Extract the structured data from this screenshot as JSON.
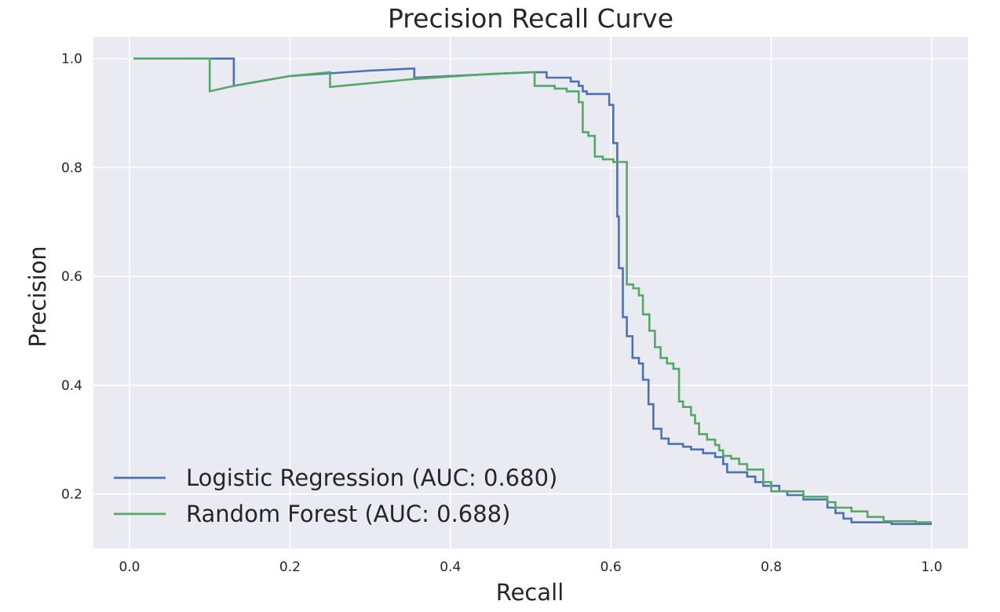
{
  "chart_data": {
    "type": "line",
    "title": "Precision Recall Curve",
    "xlabel": "Recall",
    "ylabel": "Precision",
    "xlim": [
      -0.045,
      1.045
    ],
    "ylim": [
      0.1,
      1.04
    ],
    "xticks": [
      0.0,
      0.2,
      0.4,
      0.6,
      0.8,
      1.0
    ],
    "xtick_labels": [
      "0.0",
      "0.2",
      "0.4",
      "0.6",
      "0.8",
      "1.0"
    ],
    "yticks": [
      0.2,
      0.4,
      0.6,
      0.8,
      1.0
    ],
    "ytick_labels": [
      "0.2",
      "0.4",
      "0.6",
      "0.8",
      "1.0"
    ],
    "grid": true,
    "background": "#eaeaf2",
    "legend_position": "lower-left",
    "series": [
      {
        "name": "Logistic Regression (AUC: 0.680)",
        "color": "#4c72b0",
        "step": "post",
        "points": [
          [
            0.005,
            1.0
          ],
          [
            0.13,
            1.0
          ],
          [
            0.13,
            0.95
          ],
          [
            0.2,
            0.968
          ],
          [
            0.3,
            0.978
          ],
          [
            0.355,
            0.982
          ],
          [
            0.355,
            0.965
          ],
          [
            0.5,
            0.975
          ],
          [
            0.52,
            0.975
          ],
          [
            0.52,
            0.965
          ],
          [
            0.55,
            0.965
          ],
          [
            0.55,
            0.958
          ],
          [
            0.56,
            0.958
          ],
          [
            0.56,
            0.95
          ],
          [
            0.565,
            0.95
          ],
          [
            0.565,
            0.94
          ],
          [
            0.57,
            0.94
          ],
          [
            0.57,
            0.935
          ],
          [
            0.598,
            0.935
          ],
          [
            0.598,
            0.915
          ],
          [
            0.603,
            0.915
          ],
          [
            0.603,
            0.845
          ],
          [
            0.608,
            0.845
          ],
          [
            0.608,
            0.71
          ],
          [
            0.61,
            0.71
          ],
          [
            0.61,
            0.615
          ],
          [
            0.615,
            0.615
          ],
          [
            0.615,
            0.525
          ],
          [
            0.62,
            0.525
          ],
          [
            0.62,
            0.49
          ],
          [
            0.627,
            0.49
          ],
          [
            0.627,
            0.45
          ],
          [
            0.635,
            0.45
          ],
          [
            0.635,
            0.44
          ],
          [
            0.64,
            0.44
          ],
          [
            0.64,
            0.41
          ],
          [
            0.647,
            0.41
          ],
          [
            0.647,
            0.365
          ],
          [
            0.653,
            0.365
          ],
          [
            0.653,
            0.32
          ],
          [
            0.663,
            0.32
          ],
          [
            0.663,
            0.302
          ],
          [
            0.672,
            0.302
          ],
          [
            0.672,
            0.292
          ],
          [
            0.69,
            0.292
          ],
          [
            0.69,
            0.287
          ],
          [
            0.7,
            0.287
          ],
          [
            0.7,
            0.282
          ],
          [
            0.715,
            0.282
          ],
          [
            0.715,
            0.275
          ],
          [
            0.73,
            0.275
          ],
          [
            0.73,
            0.268
          ],
          [
            0.74,
            0.268
          ],
          [
            0.74,
            0.255
          ],
          [
            0.745,
            0.255
          ],
          [
            0.745,
            0.24
          ],
          [
            0.77,
            0.24
          ],
          [
            0.77,
            0.232
          ],
          [
            0.78,
            0.232
          ],
          [
            0.78,
            0.222
          ],
          [
            0.79,
            0.222
          ],
          [
            0.79,
            0.215
          ],
          [
            0.81,
            0.215
          ],
          [
            0.81,
            0.205
          ],
          [
            0.82,
            0.205
          ],
          [
            0.82,
            0.198
          ],
          [
            0.84,
            0.198
          ],
          [
            0.84,
            0.19
          ],
          [
            0.87,
            0.19
          ],
          [
            0.87,
            0.175
          ],
          [
            0.88,
            0.175
          ],
          [
            0.88,
            0.165
          ],
          [
            0.89,
            0.165
          ],
          [
            0.89,
            0.155
          ],
          [
            0.9,
            0.155
          ],
          [
            0.9,
            0.148
          ],
          [
            0.95,
            0.148
          ],
          [
            0.95,
            0.145
          ],
          [
            1.0,
            0.145
          ]
        ]
      },
      {
        "name": "Random Forest (AUC: 0.688)",
        "color": "#55a868",
        "step": "post",
        "points": [
          [
            0.005,
            1.0
          ],
          [
            0.1,
            1.0
          ],
          [
            0.1,
            0.94
          ],
          [
            0.13,
            0.95
          ],
          [
            0.2,
            0.968
          ],
          [
            0.25,
            0.975
          ],
          [
            0.25,
            0.948
          ],
          [
            0.35,
            0.962
          ],
          [
            0.45,
            0.972
          ],
          [
            0.505,
            0.975
          ],
          [
            0.505,
            0.95
          ],
          [
            0.53,
            0.95
          ],
          [
            0.53,
            0.945
          ],
          [
            0.545,
            0.945
          ],
          [
            0.545,
            0.94
          ],
          [
            0.56,
            0.94
          ],
          [
            0.56,
            0.92
          ],
          [
            0.565,
            0.92
          ],
          [
            0.565,
            0.865
          ],
          [
            0.572,
            0.865
          ],
          [
            0.572,
            0.858
          ],
          [
            0.58,
            0.858
          ],
          [
            0.58,
            0.82
          ],
          [
            0.59,
            0.82
          ],
          [
            0.59,
            0.815
          ],
          [
            0.603,
            0.815
          ],
          [
            0.603,
            0.81
          ],
          [
            0.62,
            0.81
          ],
          [
            0.62,
            0.585
          ],
          [
            0.628,
            0.585
          ],
          [
            0.628,
            0.578
          ],
          [
            0.635,
            0.578
          ],
          [
            0.635,
            0.565
          ],
          [
            0.64,
            0.565
          ],
          [
            0.64,
            0.53
          ],
          [
            0.648,
            0.53
          ],
          [
            0.648,
            0.5
          ],
          [
            0.655,
            0.5
          ],
          [
            0.655,
            0.47
          ],
          [
            0.662,
            0.47
          ],
          [
            0.662,
            0.45
          ],
          [
            0.67,
            0.45
          ],
          [
            0.67,
            0.44
          ],
          [
            0.678,
            0.44
          ],
          [
            0.678,
            0.43
          ],
          [
            0.685,
            0.43
          ],
          [
            0.685,
            0.37
          ],
          [
            0.69,
            0.37
          ],
          [
            0.69,
            0.36
          ],
          [
            0.7,
            0.36
          ],
          [
            0.7,
            0.345
          ],
          [
            0.705,
            0.345
          ],
          [
            0.705,
            0.33
          ],
          [
            0.71,
            0.33
          ],
          [
            0.71,
            0.31
          ],
          [
            0.72,
            0.31
          ],
          [
            0.72,
            0.3
          ],
          [
            0.73,
            0.3
          ],
          [
            0.73,
            0.29
          ],
          [
            0.735,
            0.29
          ],
          [
            0.735,
            0.28
          ],
          [
            0.74,
            0.28
          ],
          [
            0.74,
            0.27
          ],
          [
            0.75,
            0.27
          ],
          [
            0.75,
            0.265
          ],
          [
            0.76,
            0.265
          ],
          [
            0.76,
            0.255
          ],
          [
            0.77,
            0.255
          ],
          [
            0.77,
            0.245
          ],
          [
            0.79,
            0.245
          ],
          [
            0.79,
            0.222
          ],
          [
            0.8,
            0.222
          ],
          [
            0.8,
            0.205
          ],
          [
            0.84,
            0.205
          ],
          [
            0.84,
            0.195
          ],
          [
            0.87,
            0.195
          ],
          [
            0.87,
            0.185
          ],
          [
            0.88,
            0.185
          ],
          [
            0.88,
            0.175
          ],
          [
            0.9,
            0.175
          ],
          [
            0.9,
            0.168
          ],
          [
            0.92,
            0.168
          ],
          [
            0.92,
            0.158
          ],
          [
            0.94,
            0.158
          ],
          [
            0.94,
            0.15
          ],
          [
            0.98,
            0.15
          ],
          [
            0.98,
            0.148
          ],
          [
            1.0,
            0.148
          ]
        ]
      }
    ]
  }
}
